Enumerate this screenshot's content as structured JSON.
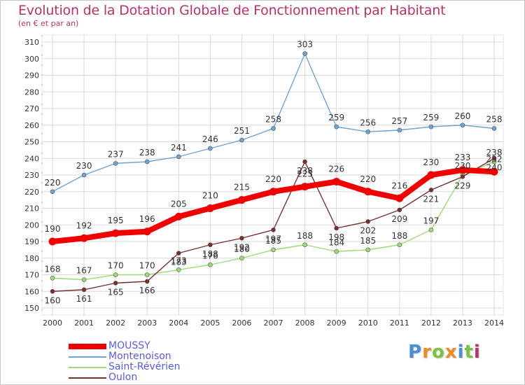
{
  "header": {
    "title": "Evolution de la Dotation Globale de Fonctionnement par Habitant",
    "subtitle": "(en € et par an)"
  },
  "logo": {
    "letters": [
      "P",
      "r",
      "o",
      "x",
      "i",
      "t",
      "i"
    ],
    "colors": [
      "#4a8fd6",
      "#f08a24",
      "#7cc242",
      "#f08a24",
      "#4a8fd6",
      "#7cc242",
      "#b5336a"
    ]
  },
  "chart_data": {
    "type": "line",
    "title": "Evolution de la Dotation Globale de Fonctionnement par Habitant",
    "subtitle": "(en € et par an)",
    "xlabel": "",
    "ylabel": "",
    "x": [
      "2000",
      "2001",
      "2002",
      "2003",
      "2004",
      "2005",
      "2006",
      "2007",
      "2008",
      "2009",
      "2010",
      "2011",
      "2012",
      "2013",
      "2014"
    ],
    "ylim": [
      150,
      310
    ],
    "yticks": [
      150,
      160,
      170,
      180,
      190,
      200,
      210,
      220,
      230,
      240,
      250,
      260,
      270,
      280,
      290,
      300,
      310
    ],
    "grid": true,
    "legend_position": "bottom-left",
    "series": [
      {
        "name": "Montenoison",
        "color": "#6fa3d1",
        "values": [
          220,
          230,
          237,
          238,
          241,
          246,
          251,
          258,
          303,
          259,
          256,
          257,
          259,
          260,
          258
        ],
        "labels": [
          "220",
          "230",
          "237",
          "238",
          "241",
          "246",
          "251",
          "258",
          "303",
          "259",
          "256",
          "257",
          "259",
          "260",
          "258"
        ]
      },
      {
        "name": "Saint-Révérien",
        "color": "#9ed97a",
        "values": [
          168,
          167,
          170,
          170,
          173,
          176,
          180,
          185,
          188,
          184,
          185,
          188,
          197,
          230,
          238
        ],
        "labels": [
          "168",
          "167",
          "170",
          "170",
          "173",
          "176",
          "180",
          "185",
          "188",
          "184",
          "185",
          "188",
          "197",
          "230",
          "238"
        ]
      },
      {
        "name": "Oulon",
        "color": "#7a2f2f",
        "values": [
          160,
          161,
          165,
          166,
          183,
          188,
          192,
          197,
          238,
          198,
          202,
          209,
          221,
          229,
          240
        ],
        "labels": [
          "160",
          "161",
          "165",
          "166",
          "183",
          "188",
          "192",
          "197",
          "238",
          "198",
          "202",
          "209",
          "221",
          "229",
          "240"
        ]
      },
      {
        "name": "MOUSSY",
        "color": "#ee0000",
        "values": [
          190,
          192,
          195,
          196,
          205,
          210,
          215,
          220,
          223,
          226,
          220,
          216,
          230,
          233,
          232
        ],
        "labels": [
          "190",
          "192",
          "195",
          "196",
          "205",
          "210",
          "215",
          "220",
          "223",
          "226",
          "220",
          "216",
          "230",
          "233",
          "232"
        ]
      }
    ],
    "legend": [
      "MOUSSY",
      "Montenoison",
      "Saint-Révérien",
      "Oulon"
    ]
  }
}
